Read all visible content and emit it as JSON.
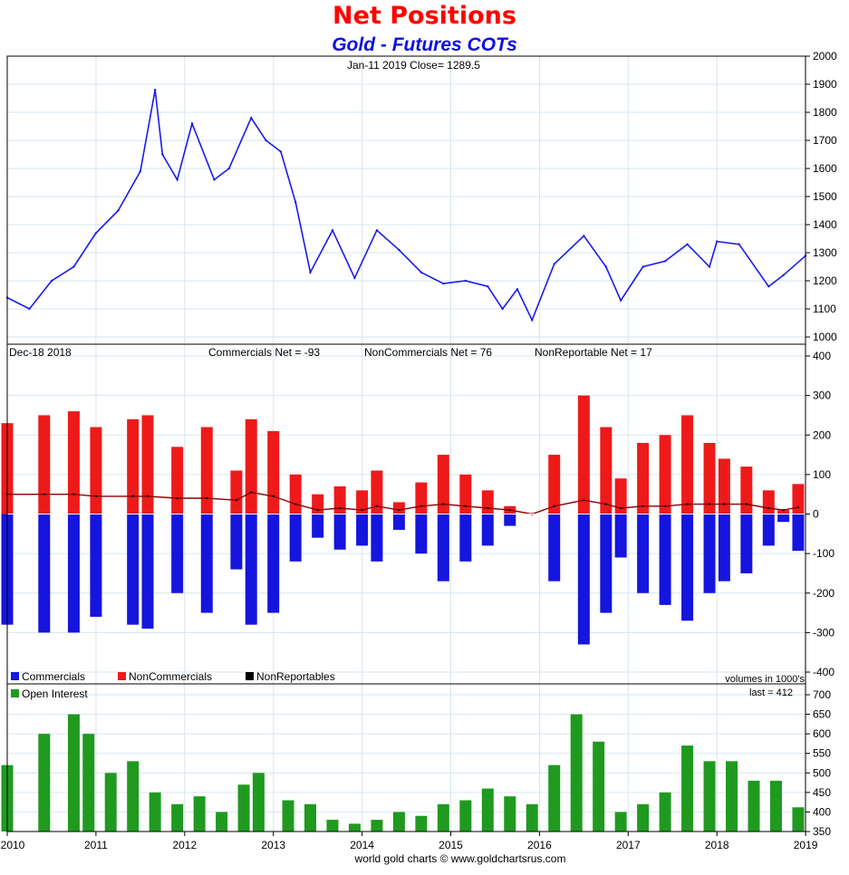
{
  "title": "Net Positions",
  "subtitle": "Gold - Futures COTs",
  "credit": "world gold charts © www.goldchartsrus.com",
  "colors": {
    "price_line": "#1a1aee",
    "commercials": "#1515dd",
    "noncommercials": "#ee1a1a",
    "nonreportables": "#000000",
    "open_interest": "#1f9a1f",
    "title": "#ff0000",
    "subtitle": "#1010e0",
    "grid": "#d6e6f0"
  },
  "chart_data": [
    {
      "type": "line",
      "panel": "price",
      "info_label": "Jan-11  2019   Close= 1289.5",
      "y_ticks": [
        "1000",
        "1100",
        "1200",
        "1300",
        "1400",
        "1500",
        "1600",
        "1700",
        "1800",
        "1900",
        "2000"
      ],
      "ylim": [
        1000,
        2000
      ],
      "x": [
        "2010-01",
        "2010-04",
        "2010-07",
        "2010-10",
        "2011-01",
        "2011-04",
        "2011-07",
        "2011-09",
        "2011-10",
        "2011-12",
        "2012-02",
        "2012-05",
        "2012-07",
        "2012-10",
        "2012-12",
        "2013-02",
        "2013-04",
        "2013-06",
        "2013-09",
        "2013-12",
        "2014-03",
        "2014-06",
        "2014-09",
        "2014-12",
        "2015-03",
        "2015-06",
        "2015-08",
        "2015-10",
        "2015-12",
        "2016-03",
        "2016-07",
        "2016-10",
        "2016-12",
        "2017-03",
        "2017-06",
        "2017-09",
        "2017-12",
        "2018-01",
        "2018-04",
        "2018-08",
        "2018-10",
        "2019-01"
      ],
      "series": [
        {
          "values": [
            1140,
            1100,
            1200,
            1250,
            1370,
            1450,
            1590,
            1880,
            1650,
            1560,
            1760,
            1560,
            1600,
            1780,
            1700,
            1660,
            1480,
            1230,
            1380,
            1210,
            1380,
            1310,
            1230,
            1190,
            1200,
            1180,
            1100,
            1170,
            1060,
            1260,
            1360,
            1250,
            1130,
            1250,
            1270,
            1330,
            1250,
            1340,
            1330,
            1180,
            1220,
            1289.5
          ]
        }
      ]
    },
    {
      "type": "bar",
      "panel": "net_positions",
      "date_label": "Dec-18  2018",
      "summary": {
        "commercials": "Commercials Net = -93",
        "noncommercials": "NonCommercials Net = 76",
        "nonreportable": "NonReportable Net = 17"
      },
      "y_ticks": [
        "-400",
        "-300",
        "-200",
        "-100",
        "0",
        "100",
        "200",
        "300",
        "400"
      ],
      "ylim": [
        -400,
        400
      ],
      "legend": [
        "Commercials",
        "NonCommercials",
        "NonReportables"
      ],
      "volumes_note": "volumes in 1000's",
      "x": [
        "2010-01",
        "2010-06",
        "2010-10",
        "2011-01",
        "2011-06",
        "2011-08",
        "2011-12",
        "2012-04",
        "2012-08",
        "2012-10",
        "2013-01",
        "2013-04",
        "2013-07",
        "2013-10",
        "2014-01",
        "2014-03",
        "2014-06",
        "2014-09",
        "2014-12",
        "2015-03",
        "2015-06",
        "2015-09",
        "2015-12",
        "2016-03",
        "2016-07",
        "2016-10",
        "2016-12",
        "2017-03",
        "2017-06",
        "2017-09",
        "2017-12",
        "2018-02",
        "2018-05",
        "2018-08",
        "2018-10",
        "2018-12"
      ],
      "series": [
        {
          "name": "Commercials",
          "values": [
            -280,
            -300,
            -300,
            -260,
            -280,
            -290,
            -200,
            -250,
            -140,
            -280,
            -250,
            -120,
            -60,
            -90,
            -80,
            -120,
            -40,
            -100,
            -170,
            -120,
            -80,
            -30,
            0,
            -170,
            -330,
            -250,
            -110,
            -200,
            -230,
            -270,
            -200,
            -170,
            -150,
            -80,
            -20,
            -93
          ]
        },
        {
          "name": "NonCommercials",
          "values": [
            230,
            250,
            260,
            220,
            240,
            250,
            170,
            220,
            110,
            240,
            210,
            100,
            50,
            70,
            60,
            110,
            30,
            80,
            150,
            100,
            60,
            20,
            0,
            150,
            300,
            220,
            90,
            180,
            200,
            250,
            180,
            140,
            120,
            60,
            10,
            76
          ]
        },
        {
          "name": "NonReportables",
          "values": [
            50,
            50,
            50,
            45,
            45,
            45,
            40,
            40,
            35,
            55,
            45,
            25,
            10,
            15,
            10,
            20,
            10,
            20,
            25,
            20,
            15,
            10,
            0,
            20,
            35,
            25,
            15,
            20,
            20,
            25,
            25,
            25,
            25,
            15,
            10,
            17
          ]
        }
      ]
    },
    {
      "type": "bar",
      "panel": "open_interest",
      "legend": [
        "Open Interest"
      ],
      "last_label": "last = 412",
      "y_ticks": [
        "350",
        "400",
        "450",
        "500",
        "550",
        "600",
        "650",
        "700"
      ],
      "ylim": [
        350,
        700
      ],
      "x_ticks": [
        "2010",
        "2011",
        "2012",
        "2013",
        "2014",
        "2015",
        "2016",
        "2017",
        "2018",
        "2019"
      ],
      "x": [
        "2010-01",
        "2010-06",
        "2010-10",
        "2010-12",
        "2011-03",
        "2011-06",
        "2011-09",
        "2011-12",
        "2012-03",
        "2012-06",
        "2012-09",
        "2012-11",
        "2013-03",
        "2013-06",
        "2013-09",
        "2013-12",
        "2014-03",
        "2014-06",
        "2014-09",
        "2014-12",
        "2015-03",
        "2015-06",
        "2015-09",
        "2015-12",
        "2016-03",
        "2016-06",
        "2016-09",
        "2016-12",
        "2017-03",
        "2017-06",
        "2017-09",
        "2017-12",
        "2018-03",
        "2018-06",
        "2018-09",
        "2018-12"
      ],
      "series": [
        {
          "name": "Open Interest",
          "values": [
            520,
            600,
            650,
            600,
            500,
            530,
            450,
            420,
            440,
            400,
            470,
            500,
            430,
            420,
            380,
            370,
            380,
            400,
            390,
            420,
            430,
            460,
            440,
            420,
            520,
            650,
            580,
            400,
            420,
            450,
            570,
            530,
            530,
            480,
            480,
            412
          ]
        }
      ]
    }
  ]
}
